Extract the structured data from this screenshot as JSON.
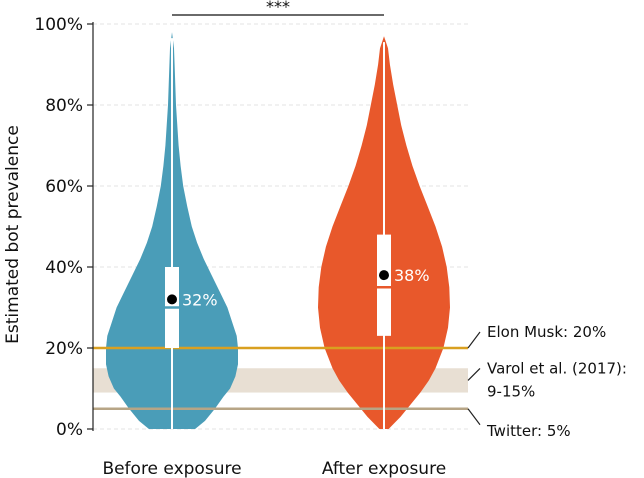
{
  "chart_data": {
    "type": "violin",
    "ylabel": "Estimated bot prevalence",
    "ylim": [
      0,
      100
    ],
    "y_ticks": [
      "0%",
      "20%",
      "40%",
      "60%",
      "80%",
      "100%"
    ],
    "categories": [
      "Before exposure",
      "After exposure"
    ],
    "series": [
      {
        "category": "Before exposure",
        "color": "#4a9db8",
        "mean": 32,
        "mean_label": "32%",
        "median": 30,
        "q1": 20,
        "q3": 40,
        "min": 0,
        "max": 98,
        "density": [
          [
            0,
            0.35
          ],
          [
            2,
            0.5
          ],
          [
            5,
            0.65
          ],
          [
            8,
            0.78
          ],
          [
            10,
            0.88
          ],
          [
            13,
            0.96
          ],
          [
            16,
            1.0
          ],
          [
            20,
            1.0
          ],
          [
            23,
            0.98
          ],
          [
            26,
            0.92
          ],
          [
            30,
            0.84
          ],
          [
            34,
            0.72
          ],
          [
            38,
            0.6
          ],
          [
            42,
            0.48
          ],
          [
            46,
            0.38
          ],
          [
            50,
            0.3
          ],
          [
            55,
            0.23
          ],
          [
            60,
            0.17
          ],
          [
            65,
            0.13
          ],
          [
            70,
            0.1
          ],
          [
            75,
            0.08
          ],
          [
            80,
            0.06
          ],
          [
            85,
            0.05
          ],
          [
            90,
            0.04
          ],
          [
            94,
            0.03
          ],
          [
            98,
            0.0
          ]
        ]
      },
      {
        "category": "After exposure",
        "color": "#e8582b",
        "mean": 38,
        "mean_label": "38%",
        "median": 35,
        "q1": 23,
        "q3": 48,
        "min": 0,
        "max": 97,
        "density": [
          [
            0,
            0.07
          ],
          [
            3,
            0.25
          ],
          [
            6,
            0.4
          ],
          [
            9,
            0.55
          ],
          [
            12,
            0.68
          ],
          [
            15,
            0.78
          ],
          [
            20,
            0.9
          ],
          [
            25,
            0.97
          ],
          [
            30,
            1.0
          ],
          [
            35,
            0.99
          ],
          [
            40,
            0.95
          ],
          [
            45,
            0.88
          ],
          [
            50,
            0.78
          ],
          [
            55,
            0.66
          ],
          [
            60,
            0.54
          ],
          [
            65,
            0.43
          ],
          [
            70,
            0.34
          ],
          [
            75,
            0.26
          ],
          [
            80,
            0.2
          ],
          [
            85,
            0.14
          ],
          [
            90,
            0.09
          ],
          [
            94,
            0.06
          ],
          [
            97,
            0.0
          ]
        ]
      }
    ],
    "reference_lines": [
      {
        "label": "Elon Musk: 20%",
        "value": 20,
        "color": "#d9a020"
      },
      {
        "label": "Twitter: 5%",
        "value": 5,
        "color": "#b7a586"
      }
    ],
    "reference_bands": [
      {
        "label_line1": "Varol et al. (2017):",
        "label_line2": "9-15%",
        "from": 9,
        "to": 15,
        "color": "#e8dfd3"
      }
    ],
    "significance": {
      "label": "***",
      "between": [
        "Before exposure",
        "After exposure"
      ]
    },
    "grid": "horizontal-dashed"
  }
}
